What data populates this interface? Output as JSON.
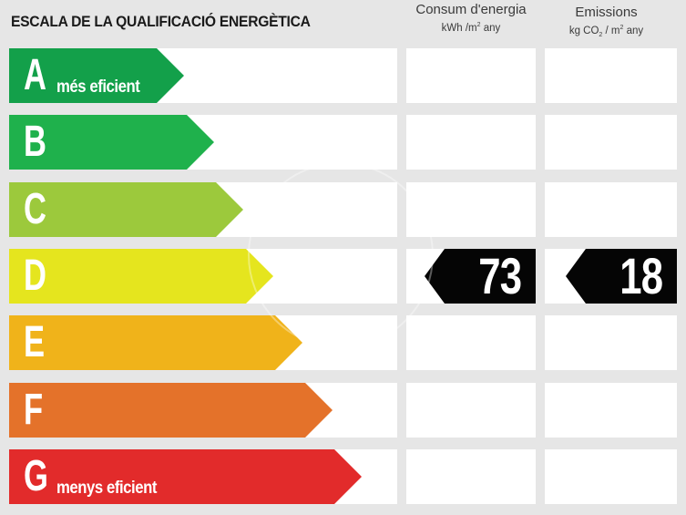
{
  "title": "ESCALA DE LA QUALIFICACIÓ ENERGÈTICA",
  "columns": {
    "consum": {
      "label": "Consum d'energia",
      "unit_pre": "kWh /m",
      "unit_sup": "2",
      "unit_post": " any"
    },
    "emissions": {
      "label": "Emissions",
      "unit_pre": "kg CO",
      "unit_sub": "2",
      "unit_mid": " / m",
      "unit_sup": "2",
      "unit_post": " any"
    }
  },
  "classes": [
    {
      "letter": "A",
      "subtitle": "més eficient",
      "color": "#13a04a"
    },
    {
      "letter": "B",
      "subtitle": "",
      "color": "#1fb14c"
    },
    {
      "letter": "C",
      "subtitle": "",
      "color": "#9cc93c"
    },
    {
      "letter": "D",
      "subtitle": "",
      "color": "#e5e51e"
    },
    {
      "letter": "E",
      "subtitle": "",
      "color": "#f0b31a"
    },
    {
      "letter": "F",
      "subtitle": "",
      "color": "#e4722a"
    },
    {
      "letter": "G",
      "subtitle": "menys eficient",
      "color": "#e22b2b"
    }
  ],
  "rating": {
    "class": "D",
    "consum_value": "73",
    "emissions_value": "18"
  },
  "marker_color": "#050505"
}
